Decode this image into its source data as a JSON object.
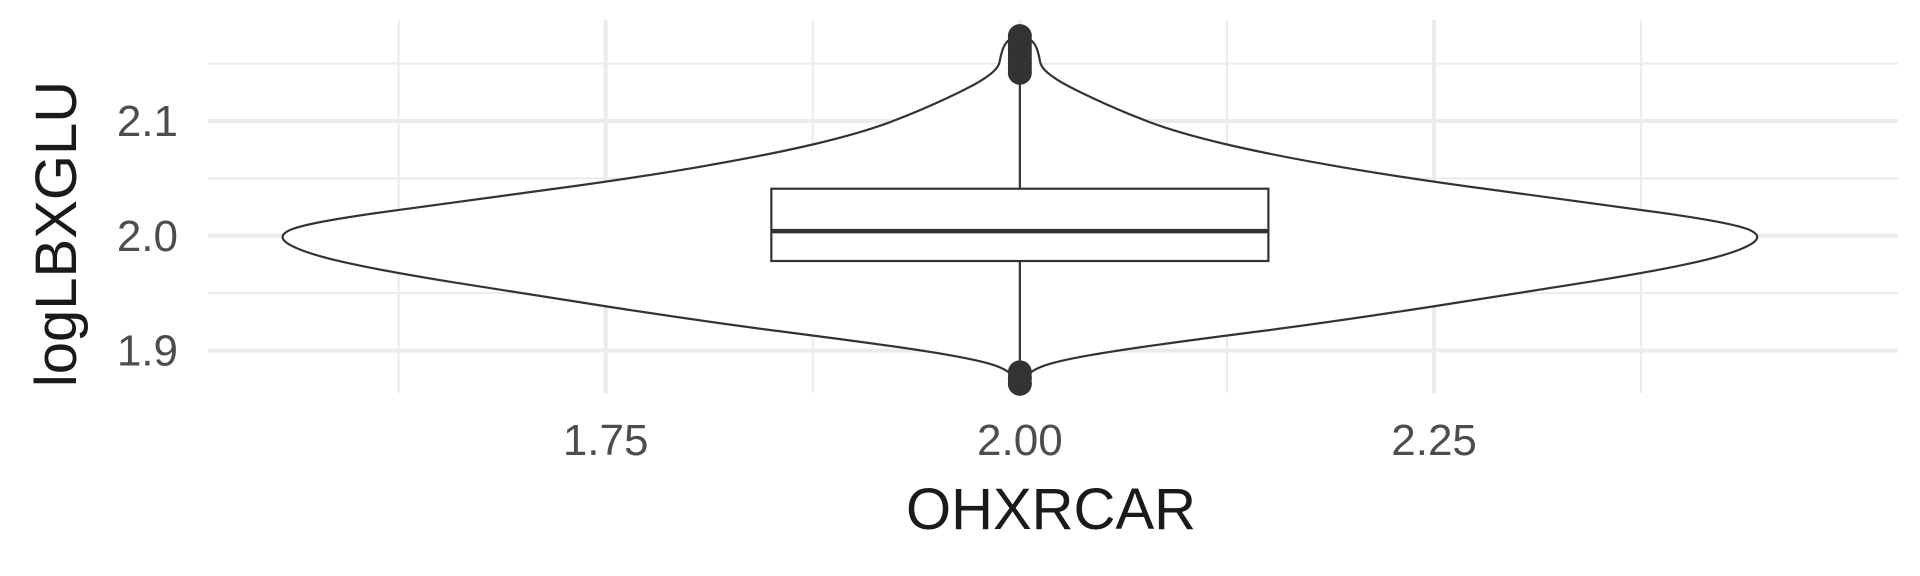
{
  "chart_data": {
    "type": "violin",
    "xlabel": "OHXRCAR",
    "ylabel": "logLBXGLU",
    "x_ticks": [
      1.75,
      2.0,
      2.25
    ],
    "x_tick_labels": [
      "1.75",
      "2.00",
      "2.25"
    ],
    "y_ticks": [
      1.9,
      2.0,
      2.1
    ],
    "y_tick_labels": [
      "1.9",
      "2.0",
      "2.1"
    ],
    "xlim": [
      1.51,
      2.53
    ],
    "ylim": [
      1.863,
      2.188
    ],
    "grid": true,
    "colors": {
      "outline": "#333333",
      "grid": "#ebebeb",
      "point": "#333333",
      "fill": "#ffffff"
    },
    "group": {
      "x": 2.0,
      "violin_halfwidth": 0.45,
      "violin_profile": [
        {
          "y": 1.868,
          "w": 0.0
        },
        {
          "y": 1.876,
          "w": 0.006
        },
        {
          "y": 1.885,
          "w": 0.022
        },
        {
          "y": 1.892,
          "w": 0.06
        },
        {
          "y": 1.9,
          "w": 0.13
        },
        {
          "y": 1.91,
          "w": 0.24
        },
        {
          "y": 1.925,
          "w": 0.42
        },
        {
          "y": 1.95,
          "w": 0.67
        },
        {
          "y": 1.97,
          "w": 0.86
        },
        {
          "y": 1.985,
          "w": 0.96
        },
        {
          "y": 2.0,
          "w": 1.0
        },
        {
          "y": 2.012,
          "w": 0.95
        },
        {
          "y": 2.03,
          "w": 0.75
        },
        {
          "y": 2.05,
          "w": 0.52
        },
        {
          "y": 2.07,
          "w": 0.34
        },
        {
          "y": 2.09,
          "w": 0.21
        },
        {
          "y": 2.11,
          "w": 0.13
        },
        {
          "y": 2.13,
          "w": 0.065
        },
        {
          "y": 2.14,
          "w": 0.04
        },
        {
          "y": 2.148,
          "w": 0.028
        },
        {
          "y": 2.156,
          "w": 0.026
        },
        {
          "y": 2.165,
          "w": 0.022
        },
        {
          "y": 2.171,
          "w": 0.015
        },
        {
          "y": 2.175,
          "w": 0.0
        }
      ],
      "box": {
        "q1": 1.978,
        "median": 2.004,
        "q3": 2.041,
        "whisker_low": 1.886,
        "whisker_high": 2.138,
        "halfwidth": 0.15
      },
      "outliers": [
        1.871,
        1.876,
        1.881,
        2.142,
        2.146,
        2.15,
        2.154,
        2.158,
        2.162,
        2.166,
        2.17,
        2.174
      ]
    }
  }
}
